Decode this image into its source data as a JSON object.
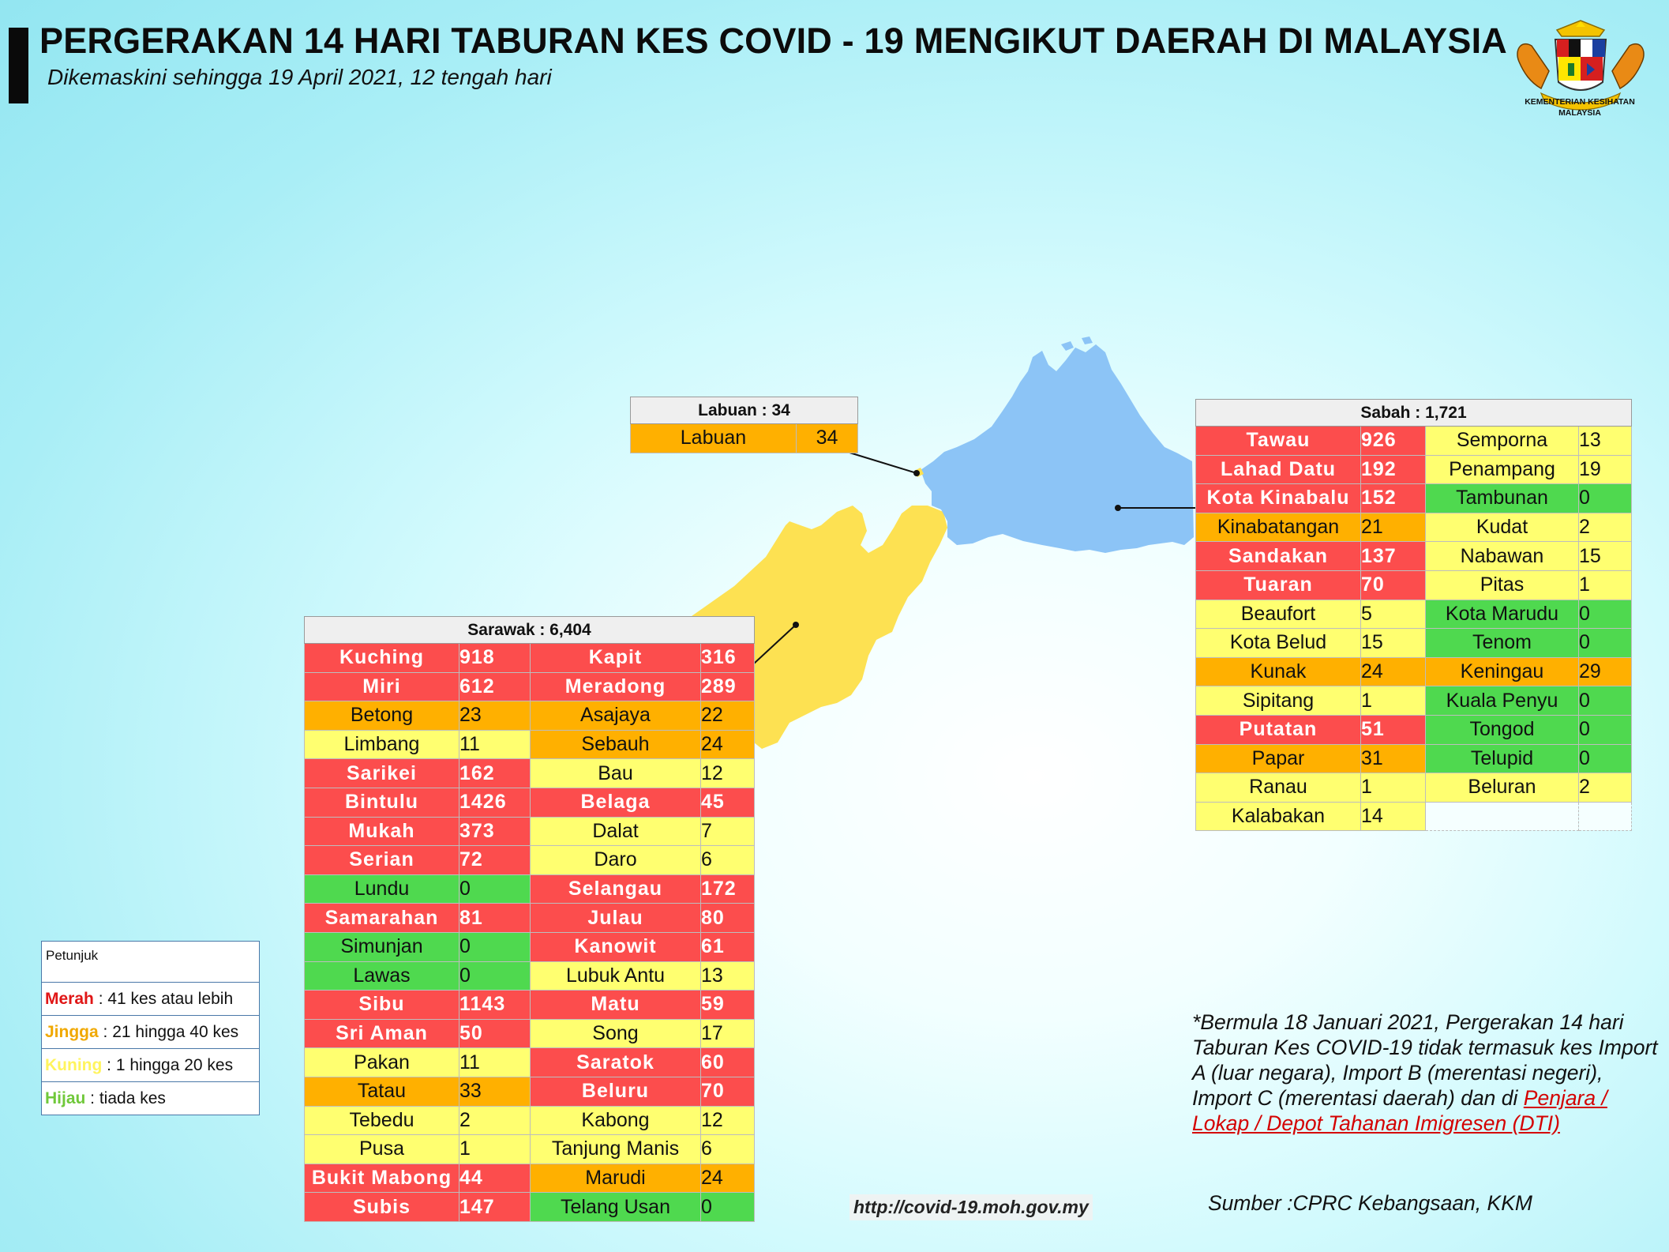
{
  "header": {
    "title": "PERGERAKAN 14 HARI TABURAN KES COVID - 19 MENGIKUT DAERAH DI MALAYSIA",
    "subtitle": "Dikemaskini sehingga 19 April 2021, 12 tengah hari"
  },
  "logo": {
    "caption_line1": "KEMENTERIAN KESIHATAN",
    "caption_line2": "MALAYSIA"
  },
  "colors": {
    "merah": "#fc4d4d",
    "jingga": "#ffb000",
    "kuning": "#ffff70",
    "hijau": "#4fd94f",
    "sabah_map": "#8cc4f6",
    "sarawak_map": "#fde152"
  },
  "labuan": {
    "title": "Labuan : 34",
    "rows": [
      {
        "name": "Labuan",
        "value": "34",
        "level": "jingga"
      }
    ]
  },
  "sabah": {
    "title": "Sabah : 1,721",
    "rows": [
      {
        "a": {
          "name": "Tawau",
          "value": "926",
          "level": "merah"
        },
        "b": {
          "name": "Semporna",
          "value": "13",
          "level": "kuning"
        }
      },
      {
        "a": {
          "name": "Lahad Datu",
          "value": "192",
          "level": "merah"
        },
        "b": {
          "name": "Penampang",
          "value": "19",
          "level": "kuning"
        }
      },
      {
        "a": {
          "name": "Kota Kinabalu",
          "value": "152",
          "level": "merah"
        },
        "b": {
          "name": "Tambunan",
          "value": "0",
          "level": "hijau"
        }
      },
      {
        "a": {
          "name": "Kinabatangan",
          "value": "21",
          "level": "jingga"
        },
        "b": {
          "name": "Kudat",
          "value": "2",
          "level": "kuning"
        }
      },
      {
        "a": {
          "name": "Sandakan",
          "value": "137",
          "level": "merah"
        },
        "b": {
          "name": "Nabawan",
          "value": "15",
          "level": "kuning"
        }
      },
      {
        "a": {
          "name": "Tuaran",
          "value": "70",
          "level": "merah"
        },
        "b": {
          "name": "Pitas",
          "value": "1",
          "level": "kuning"
        }
      },
      {
        "a": {
          "name": "Beaufort",
          "value": "5",
          "level": "kuning"
        },
        "b": {
          "name": "Kota Marudu",
          "value": "0",
          "level": "hijau"
        }
      },
      {
        "a": {
          "name": "Kota Belud",
          "value": "15",
          "level": "kuning"
        },
        "b": {
          "name": "Tenom",
          "value": "0",
          "level": "hijau"
        }
      },
      {
        "a": {
          "name": "Kunak",
          "value": "24",
          "level": "jingga"
        },
        "b": {
          "name": "Keningau",
          "value": "29",
          "level": "jingga"
        }
      },
      {
        "a": {
          "name": "Sipitang",
          "value": "1",
          "level": "kuning"
        },
        "b": {
          "name": "Kuala Penyu",
          "value": "0",
          "level": "hijau"
        }
      },
      {
        "a": {
          "name": "Putatan",
          "value": "51",
          "level": "merah"
        },
        "b": {
          "name": "Tongod",
          "value": "0",
          "level": "hijau"
        }
      },
      {
        "a": {
          "name": "Papar",
          "value": "31",
          "level": "jingga"
        },
        "b": {
          "name": "Telupid",
          "value": "0",
          "level": "hijau"
        }
      },
      {
        "a": {
          "name": "Ranau",
          "value": "1",
          "level": "kuning"
        },
        "b": {
          "name": "Beluran",
          "value": "2",
          "level": "kuning"
        }
      },
      {
        "a": {
          "name": "Kalabakan",
          "value": "14",
          "level": "kuning"
        },
        "b": {
          "name": "",
          "value": "",
          "level": "kosong"
        }
      }
    ]
  },
  "sarawak": {
    "title": "Sarawak : 6,404",
    "rows": [
      {
        "a": {
          "name": "Kuching",
          "value": "918",
          "level": "merah"
        },
        "b": {
          "name": "Kapit",
          "value": "316",
          "level": "merah"
        }
      },
      {
        "a": {
          "name": "Miri",
          "value": "612",
          "level": "merah"
        },
        "b": {
          "name": "Meradong",
          "value": "289",
          "level": "merah"
        }
      },
      {
        "a": {
          "name": "Betong",
          "value": "23",
          "level": "jingga"
        },
        "b": {
          "name": "Asajaya",
          "value": "22",
          "level": "jingga"
        }
      },
      {
        "a": {
          "name": "Limbang",
          "value": "11",
          "level": "kuning"
        },
        "b": {
          "name": "Sebauh",
          "value": "24",
          "level": "jingga"
        }
      },
      {
        "a": {
          "name": "Sarikei",
          "value": "162",
          "level": "merah"
        },
        "b": {
          "name": "Bau",
          "value": "12",
          "level": "kuning"
        }
      },
      {
        "a": {
          "name": "Bintulu",
          "value": "1426",
          "level": "merah"
        },
        "b": {
          "name": "Belaga",
          "value": "45",
          "level": "merah"
        }
      },
      {
        "a": {
          "name": "Mukah",
          "value": "373",
          "level": "merah"
        },
        "b": {
          "name": "Dalat",
          "value": "7",
          "level": "kuning"
        }
      },
      {
        "a": {
          "name": "Serian",
          "value": "72",
          "level": "merah"
        },
        "b": {
          "name": "Daro",
          "value": "6",
          "level": "kuning"
        }
      },
      {
        "a": {
          "name": "Lundu",
          "value": "0",
          "level": "hijau"
        },
        "b": {
          "name": "Selangau",
          "value": "172",
          "level": "merah"
        }
      },
      {
        "a": {
          "name": "Samarahan",
          "value": "81",
          "level": "merah"
        },
        "b": {
          "name": "Julau",
          "value": "80",
          "level": "merah"
        }
      },
      {
        "a": {
          "name": "Simunjan",
          "value": "0",
          "level": "hijau"
        },
        "b": {
          "name": "Kanowit",
          "value": "61",
          "level": "merah"
        }
      },
      {
        "a": {
          "name": "Lawas",
          "value": "0",
          "level": "hijau"
        },
        "b": {
          "name": "Lubuk Antu",
          "value": "13",
          "level": "kuning"
        }
      },
      {
        "a": {
          "name": "Sibu",
          "value": "1143",
          "level": "merah"
        },
        "b": {
          "name": "Matu",
          "value": "59",
          "level": "merah"
        }
      },
      {
        "a": {
          "name": "Sri Aman",
          "value": "50",
          "level": "merah"
        },
        "b": {
          "name": "Song",
          "value": "17",
          "level": "kuning"
        }
      },
      {
        "a": {
          "name": "Pakan",
          "value": "11",
          "level": "kuning"
        },
        "b": {
          "name": "Saratok",
          "value": "60",
          "level": "merah"
        }
      },
      {
        "a": {
          "name": "Tatau",
          "value": "33",
          "level": "jingga"
        },
        "b": {
          "name": "Beluru",
          "value": "70",
          "level": "merah"
        }
      },
      {
        "a": {
          "name": "Tebedu",
          "value": "2",
          "level": "kuning"
        },
        "b": {
          "name": "Kabong",
          "value": "12",
          "level": "kuning"
        }
      },
      {
        "a": {
          "name": "Pusa",
          "value": "1",
          "level": "kuning"
        },
        "b": {
          "name": "Tanjung Manis",
          "value": "6",
          "level": "kuning"
        }
      },
      {
        "a": {
          "name": "Bukit Mabong",
          "value": "44",
          "level": "merah"
        },
        "b": {
          "name": "Marudi",
          "value": "24",
          "level": "jingga"
        }
      },
      {
        "a": {
          "name": "Subis",
          "value": "147",
          "level": "merah"
        },
        "b": {
          "name": "Telang Usan",
          "value": "0",
          "level": "hijau"
        }
      }
    ]
  },
  "legend": {
    "heading": "Petunjuk",
    "items": [
      {
        "key": "Merah",
        "text": " : 41 kes atau lebih",
        "level": "merah"
      },
      {
        "key": "Jingga",
        "text": " : 21 hingga 40 kes",
        "level": "jingga"
      },
      {
        "key": "Kuning",
        "text": " : 1 hingga 20 kes",
        "level": "kuning"
      },
      {
        "key": "Hijau",
        "text": " : tiada kes",
        "level": "hijau"
      }
    ]
  },
  "note": {
    "text": "*Bermula 18 Januari 2021, Pergerakan 14 hari Taburan Kes COVID-19 tidak termasuk kes Import A (luar negara), Import B (merentasi negeri), Import C (merentasi daerah) dan di ",
    "highlight": "Penjara / Lokap / Depot Tahanan Imigresen (DTI)"
  },
  "source": "Sumber :CPRC Kebangsaan,  KKM",
  "url": "http://covid-19.moh.gov.my"
}
